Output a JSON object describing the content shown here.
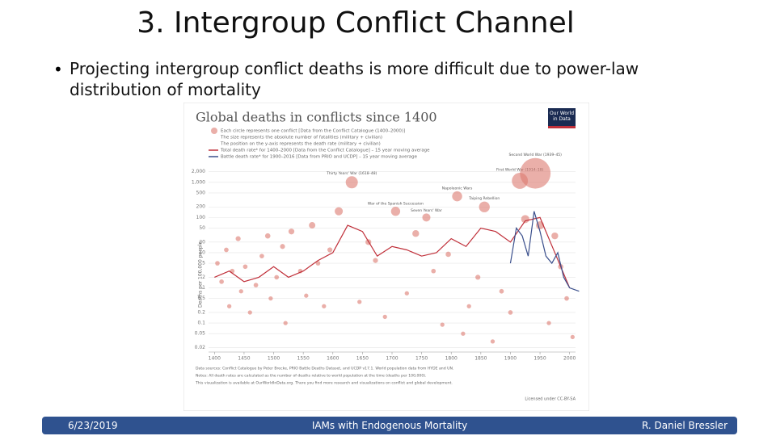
{
  "slide": {
    "title": "3. Intergroup Conflict Channel",
    "bullet": "Projecting intergroup conflict deaths is more difficult due to power-law distribution of mortality",
    "footer": {
      "date": "6/23/2019",
      "center": "IAMs with Endogenous Mortality",
      "author": "R. Daniel Bressler"
    }
  },
  "chart_data": {
    "type": "scatter",
    "title": "Global deaths in conflicts since 1400",
    "logo": "Our World in Data",
    "legend": [
      "Each circle represents one conflict [Data from the Conflict Catalogue (1400–2000)]",
      "The size represents the absolute number of fatalities (military + civilian)",
      "The position on the y-axis represents the death rate (military + civilian)"
    ],
    "y_label": "Deaths per 100,000 people",
    "log_y": true,
    "color": "#dc7a70",
    "x": [
      1405,
      1412,
      1420,
      1425,
      1430,
      1440,
      1445,
      1452,
      1460,
      1470,
      1480,
      1490,
      1495,
      1505,
      1515,
      1520,
      1530,
      1545,
      1555,
      1565,
      1575,
      1585,
      1595,
      1610,
      1632,
      1645,
      1660,
      1672,
      1688,
      1706,
      1725,
      1740,
      1758,
      1770,
      1785,
      1795,
      1810,
      1820,
      1830,
      1845,
      1856,
      1870,
      1885,
      1900,
      1916,
      1925,
      1942,
      1950,
      1965,
      1975,
      1985,
      1995,
      2005
    ],
    "values": [
      5,
      1.5,
      12,
      0.3,
      3,
      25,
      0.8,
      4,
      0.2,
      1.2,
      8,
      30,
      0.5,
      2,
      15,
      0.1,
      40,
      3,
      0.6,
      60,
      5,
      0.3,
      12,
      150,
      1000,
      0.4,
      20,
      6,
      0.15,
      150,
      0.7,
      35,
      100,
      3,
      0.09,
      9,
      400,
      0.05,
      0.3,
      2,
      200,
      0.03,
      0.8,
      0.2,
      1100,
      90,
      1800,
      60,
      0.1,
      30,
      4,
      0.5,
      0.04
    ],
    "sizes": [
      0.1,
      0.1,
      0.1,
      0.05,
      0.1,
      0.2,
      0.05,
      0.1,
      0.05,
      0.1,
      0.1,
      0.3,
      0.05,
      0.1,
      0.2,
      0.05,
      0.5,
      0.1,
      0.05,
      0.8,
      0.1,
      0.05,
      0.2,
      2,
      7,
      0.05,
      0.5,
      0.2,
      0.05,
      3,
      0.05,
      1,
      2,
      0.1,
      0.05,
      0.3,
      4,
      0.05,
      0.05,
      0.2,
      5,
      0.05,
      0.1,
      0.1,
      15,
      2,
      70,
      2,
      0.05,
      1,
      0.3,
      0.1,
      0.05
    ],
    "point_labels": [
      null,
      null,
      null,
      null,
      null,
      null,
      null,
      null,
      null,
      null,
      null,
      null,
      null,
      null,
      null,
      null,
      null,
      null,
      null,
      null,
      null,
      null,
      null,
      null,
      "Thirty Years' War (1618–48)",
      null,
      null,
      null,
      null,
      "War of the Spanish Succession",
      null,
      null,
      "Seven Years' War",
      null,
      null,
      null,
      "Napoleonic Wars",
      null,
      null,
      null,
      "Taiping Rebellion",
      null,
      null,
      null,
      "First World War (1914–18)",
      null,
      "Second World War (1939–45)",
      null,
      null,
      null,
      null,
      null,
      null
    ],
    "lines": [
      {
        "name": "Total death rate* for 1400–2000 [Data from the Conflict Catalogue] – 15 year moving average",
        "color": "#c0303a",
        "x": [
          1400,
          1425,
          1450,
          1475,
          1500,
          1525,
          1550,
          1575,
          1600,
          1625,
          1650,
          1675,
          1700,
          1725,
          1750,
          1775,
          1800,
          1825,
          1850,
          1875,
          1900,
          1925,
          1950,
          1975,
          2000
        ],
        "values": [
          2,
          3,
          1.5,
          2,
          4,
          2,
          3,
          6,
          10,
          60,
          40,
          8,
          15,
          12,
          8,
          10,
          25,
          15,
          50,
          40,
          20,
          80,
          100,
          10,
          1
        ]
      },
      {
        "name": "Battle death rate* for 1900–2016 [Data from PRIO and UCDP] – 15 year moving average",
        "color": "#3a4f8c",
        "x": [
          1900,
          1910,
          1920,
          1930,
          1940,
          1950,
          1960,
          1970,
          1980,
          1990,
          2000,
          2016
        ],
        "values": [
          5,
          50,
          30,
          8,
          150,
          40,
          8,
          5,
          10,
          2,
          1,
          0.8
        ]
      }
    ],
    "xlim": [
      1390,
      2010
    ],
    "ylim": [
      0.015,
      3000
    ],
    "xticks": [
      1400,
      1450,
      1500,
      1550,
      1600,
      1650,
      1700,
      1750,
      1800,
      1850,
      1900,
      1950,
      2000
    ],
    "yticks": [
      0.02,
      0.05,
      0.1,
      0.2,
      0.5,
      1,
      2,
      5,
      10,
      20,
      50,
      100,
      200,
      500,
      {
        "value": 1000,
        "label": "1,000"
      },
      {
        "value": 2000,
        "label": "2,000"
      }
    ],
    "grid": true,
    "sources": [
      "Data sources: Conflict Catalogue by Peter Brecke, PRIO Battle Deaths Dataset, and UCDP v17.1. World population data from HYDE and UN.",
      "Notes: All death rates are calculated as the number of deaths relative to world population at the time (deaths per 100,000).",
      "This visualization is available at OurWorldInData.org. There you find more research and visualizations on conflict and global development."
    ],
    "license": "Licensed under CC-BY-SA"
  }
}
